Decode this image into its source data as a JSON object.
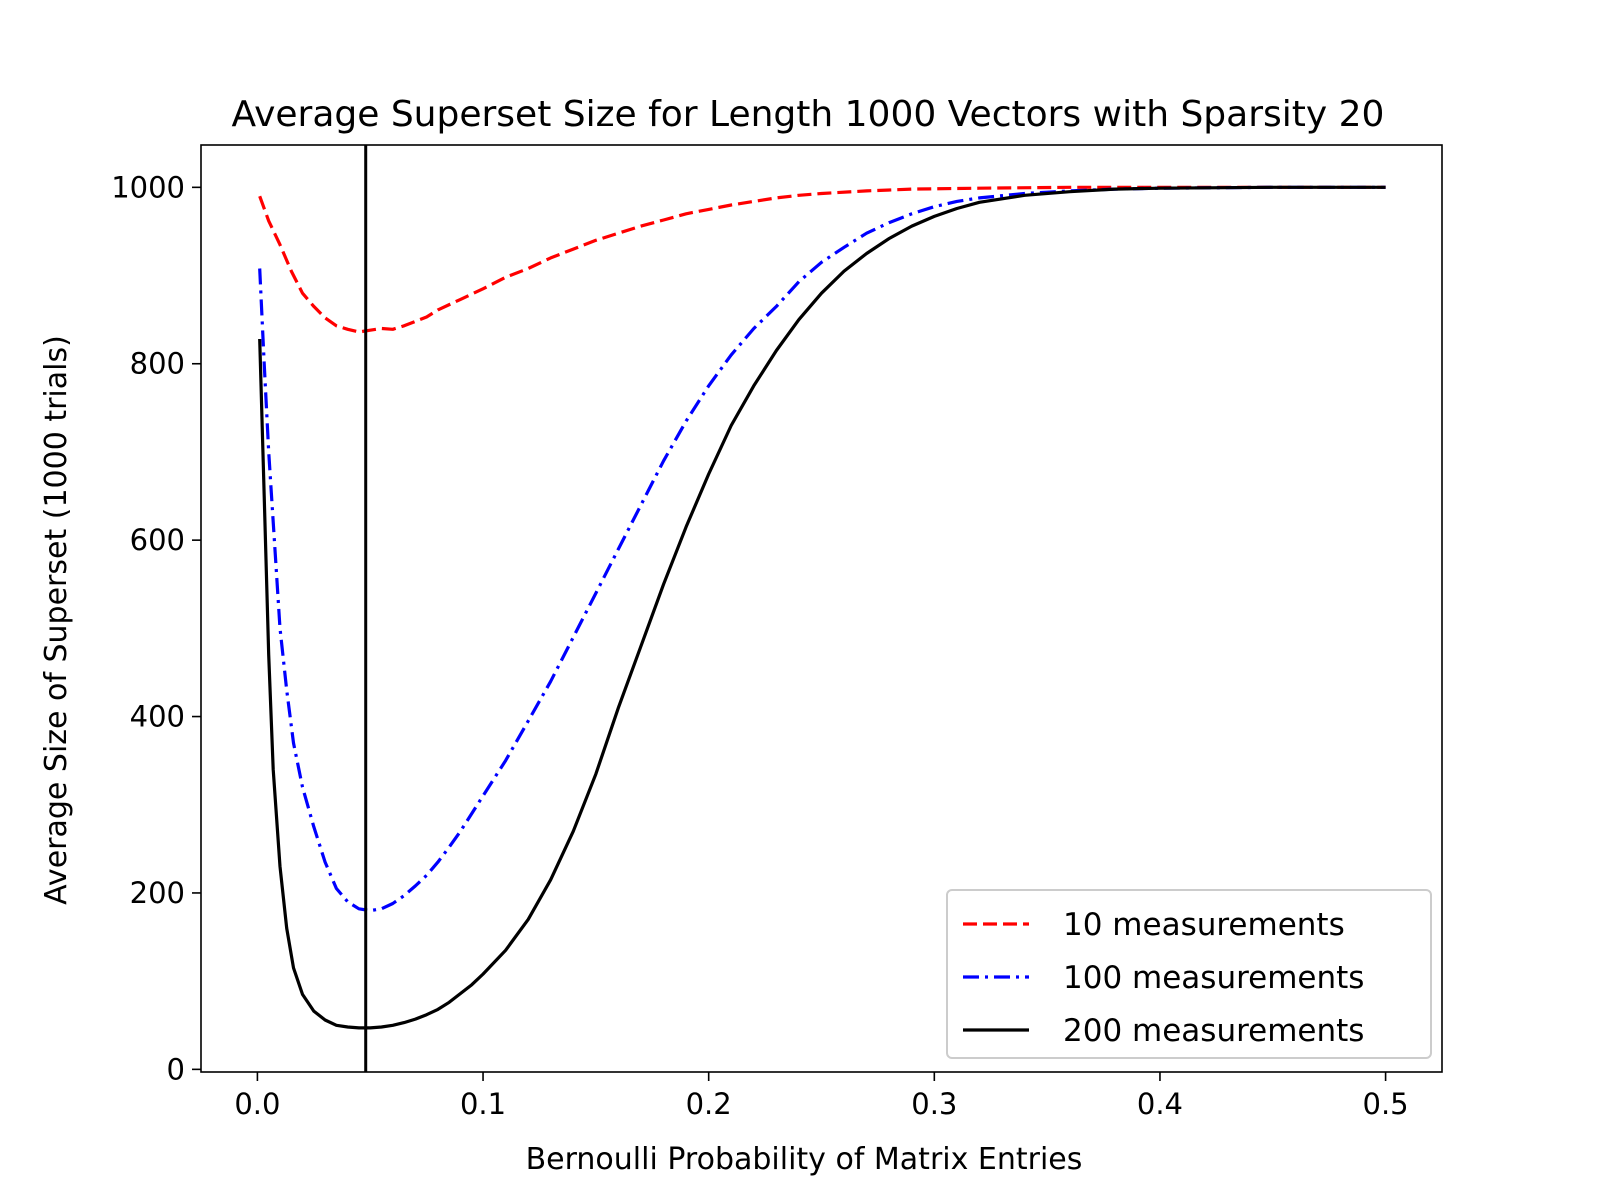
{
  "chart_data": {
    "type": "line",
    "title": "Average Superset Size for Length 1000 Vectors with Sparsity 20",
    "xlabel": "Bernoulli Probability of Matrix Entries",
    "ylabel": "Average Size of Superset (1000 trials)",
    "xlim": [
      -0.025,
      0.525
    ],
    "ylim": [
      -3,
      1048
    ],
    "x_ticks": [
      0.0,
      0.1,
      0.2,
      0.3,
      0.4,
      0.5
    ],
    "x_tick_labels": [
      "0.0",
      "0.1",
      "0.2",
      "0.3",
      "0.4",
      "0.5"
    ],
    "y_ticks": [
      0,
      200,
      400,
      600,
      800,
      1000
    ],
    "y_tick_labels": [
      "0",
      "200",
      "400",
      "600",
      "800",
      "1000"
    ],
    "vline_x": 0.048,
    "vline_color": "#000000",
    "legend_position": "lower-right",
    "series": [
      {
        "name": "10 measurements",
        "color": "#ff0000",
        "dash": "dashed",
        "points": [
          [
            0.001,
            990
          ],
          [
            0.005,
            962
          ],
          [
            0.01,
            935
          ],
          [
            0.015,
            905
          ],
          [
            0.02,
            880
          ],
          [
            0.025,
            865
          ],
          [
            0.03,
            852
          ],
          [
            0.035,
            843
          ],
          [
            0.04,
            839
          ],
          [
            0.045,
            836
          ],
          [
            0.05,
            838
          ],
          [
            0.055,
            840
          ],
          [
            0.06,
            839
          ],
          [
            0.065,
            843
          ],
          [
            0.07,
            848
          ],
          [
            0.075,
            853
          ],
          [
            0.08,
            861
          ],
          [
            0.09,
            873
          ],
          [
            0.1,
            885
          ],
          [
            0.11,
            898
          ],
          [
            0.12,
            908
          ],
          [
            0.13,
            920
          ],
          [
            0.14,
            930
          ],
          [
            0.15,
            940
          ],
          [
            0.16,
            948
          ],
          [
            0.17,
            956
          ],
          [
            0.18,
            963
          ],
          [
            0.19,
            970
          ],
          [
            0.2,
            975
          ],
          [
            0.21,
            980
          ],
          [
            0.22,
            984
          ],
          [
            0.23,
            988
          ],
          [
            0.24,
            991
          ],
          [
            0.25,
            993
          ],
          [
            0.27,
            996
          ],
          [
            0.29,
            998
          ],
          [
            0.32,
            999
          ],
          [
            0.36,
            1000
          ],
          [
            0.4,
            1000
          ],
          [
            0.45,
            1000
          ],
          [
            0.5,
            1000
          ]
        ]
      },
      {
        "name": "100 measurements",
        "color": "#0000ff",
        "dash": "dashdot",
        "points": [
          [
            0.001,
            908
          ],
          [
            0.003,
            800
          ],
          [
            0.005,
            700
          ],
          [
            0.008,
            580
          ],
          [
            0.01,
            500
          ],
          [
            0.013,
            430
          ],
          [
            0.016,
            370
          ],
          [
            0.02,
            320
          ],
          [
            0.025,
            275
          ],
          [
            0.03,
            235
          ],
          [
            0.035,
            205
          ],
          [
            0.04,
            190
          ],
          [
            0.045,
            182
          ],
          [
            0.05,
            180
          ],
          [
            0.055,
            182
          ],
          [
            0.06,
            188
          ],
          [
            0.065,
            197
          ],
          [
            0.07,
            208
          ],
          [
            0.075,
            220
          ],
          [
            0.08,
            235
          ],
          [
            0.085,
            252
          ],
          [
            0.09,
            270
          ],
          [
            0.1,
            310
          ],
          [
            0.11,
            350
          ],
          [
            0.12,
            395
          ],
          [
            0.13,
            440
          ],
          [
            0.14,
            490
          ],
          [
            0.15,
            540
          ],
          [
            0.16,
            590
          ],
          [
            0.17,
            640
          ],
          [
            0.18,
            690
          ],
          [
            0.19,
            735
          ],
          [
            0.2,
            775
          ],
          [
            0.21,
            810
          ],
          [
            0.22,
            840
          ],
          [
            0.23,
            865
          ],
          [
            0.24,
            893
          ],
          [
            0.25,
            915
          ],
          [
            0.26,
            932
          ],
          [
            0.27,
            948
          ],
          [
            0.28,
            960
          ],
          [
            0.29,
            970
          ],
          [
            0.3,
            978
          ],
          [
            0.31,
            984
          ],
          [
            0.32,
            988
          ],
          [
            0.34,
            993
          ],
          [
            0.36,
            996
          ],
          [
            0.38,
            998
          ],
          [
            0.4,
            999
          ],
          [
            0.45,
            1000
          ],
          [
            0.5,
            1000
          ]
        ]
      },
      {
        "name": "200 measurements",
        "color": "#000000",
        "dash": "solid",
        "points": [
          [
            0.001,
            828
          ],
          [
            0.003,
            650
          ],
          [
            0.005,
            470
          ],
          [
            0.007,
            340
          ],
          [
            0.01,
            230
          ],
          [
            0.013,
            160
          ],
          [
            0.016,
            115
          ],
          [
            0.02,
            85
          ],
          [
            0.025,
            66
          ],
          [
            0.03,
            56
          ],
          [
            0.035,
            50
          ],
          [
            0.04,
            48
          ],
          [
            0.045,
            47
          ],
          [
            0.05,
            47
          ],
          [
            0.055,
            48
          ],
          [
            0.06,
            50
          ],
          [
            0.065,
            53
          ],
          [
            0.07,
            57
          ],
          [
            0.075,
            62
          ],
          [
            0.08,
            68
          ],
          [
            0.085,
            76
          ],
          [
            0.09,
            86
          ],
          [
            0.095,
            96
          ],
          [
            0.1,
            108
          ],
          [
            0.11,
            135
          ],
          [
            0.12,
            170
          ],
          [
            0.13,
            215
          ],
          [
            0.14,
            270
          ],
          [
            0.15,
            335
          ],
          [
            0.16,
            410
          ],
          [
            0.17,
            480
          ],
          [
            0.18,
            550
          ],
          [
            0.19,
            615
          ],
          [
            0.2,
            675
          ],
          [
            0.21,
            730
          ],
          [
            0.22,
            775
          ],
          [
            0.23,
            815
          ],
          [
            0.24,
            850
          ],
          [
            0.25,
            880
          ],
          [
            0.26,
            905
          ],
          [
            0.27,
            925
          ],
          [
            0.28,
            942
          ],
          [
            0.29,
            956
          ],
          [
            0.3,
            967
          ],
          [
            0.31,
            976
          ],
          [
            0.32,
            983
          ],
          [
            0.34,
            991
          ],
          [
            0.36,
            995
          ],
          [
            0.38,
            998
          ],
          [
            0.4,
            999
          ],
          [
            0.45,
            1000
          ],
          [
            0.5,
            1000
          ]
        ]
      }
    ]
  }
}
